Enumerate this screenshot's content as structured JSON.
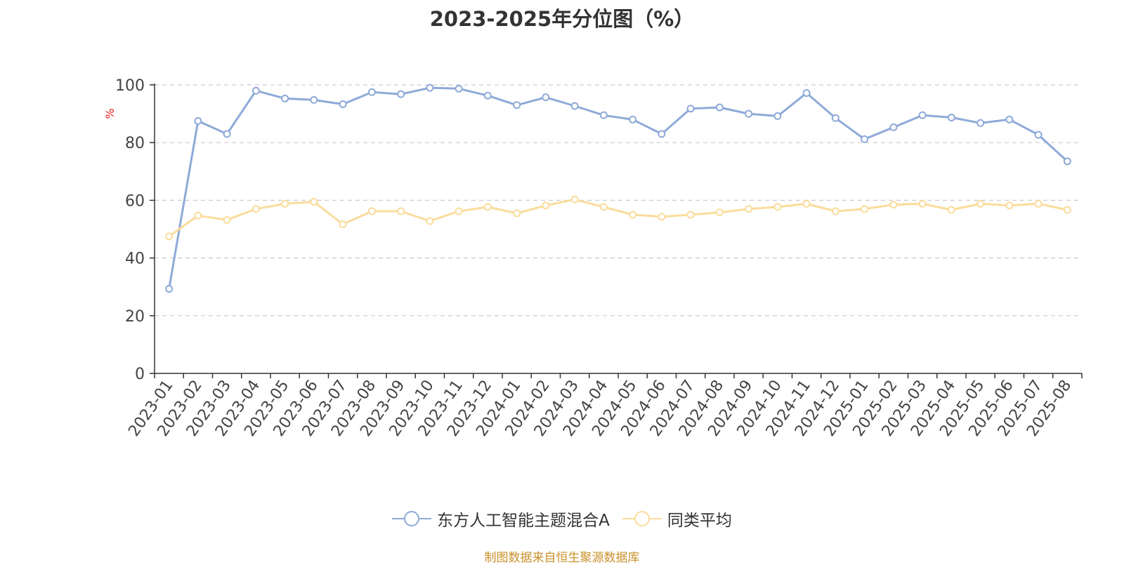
{
  "chart_data": {
    "type": "line",
    "title": "2023-2025年分位图（%）",
    "ylabel": "%",
    "ylim": [
      0,
      100
    ],
    "yticks": [
      0,
      20,
      40,
      60,
      80,
      100
    ],
    "grid": true,
    "legend_position": "bottom",
    "categories": [
      "2023-01",
      "2023-02",
      "2023-03",
      "2023-04",
      "2023-05",
      "2023-06",
      "2023-07",
      "2023-08",
      "2023-09",
      "2023-10",
      "2023-11",
      "2023-12",
      "2024-01",
      "2024-02",
      "2024-03",
      "2024-04",
      "2024-05",
      "2024-06",
      "2024-07",
      "2024-08",
      "2024-09",
      "2024-10",
      "2024-11",
      "2024-12",
      "2025-01",
      "2025-02",
      "2025-03",
      "2025-04",
      "2025-05",
      "2025-06",
      "2025-07",
      "2025-08"
    ],
    "series": [
      {
        "name": "东方人工智能主题混合A",
        "color": "#8eaad8",
        "values": [
          29.3,
          87.5,
          83.0,
          98.0,
          95.3,
          94.8,
          93.3,
          97.5,
          96.8,
          99.0,
          98.7,
          96.3,
          93.0,
          95.7,
          92.7,
          89.5,
          88.0,
          83.0,
          91.8,
          92.2,
          90.0,
          89.2,
          97.2,
          88.5,
          81.2,
          85.3,
          89.5,
          88.7,
          86.8,
          88.0,
          82.7,
          73.5
        ]
      },
      {
        "name": "同类平均",
        "color": "#fadc9c",
        "values": [
          47.5,
          54.7,
          53.2,
          57.0,
          58.8,
          59.5,
          51.7,
          56.2,
          56.2,
          52.8,
          56.2,
          57.7,
          55.5,
          58.2,
          60.3,
          57.7,
          55.0,
          54.3,
          55.0,
          55.8,
          57.0,
          57.7,
          58.8,
          56.2,
          57.0,
          58.5,
          58.8,
          56.7,
          58.8,
          58.2,
          58.8,
          56.7
        ]
      }
    ],
    "source": "制图数据来自恒生聚源数据库"
  }
}
